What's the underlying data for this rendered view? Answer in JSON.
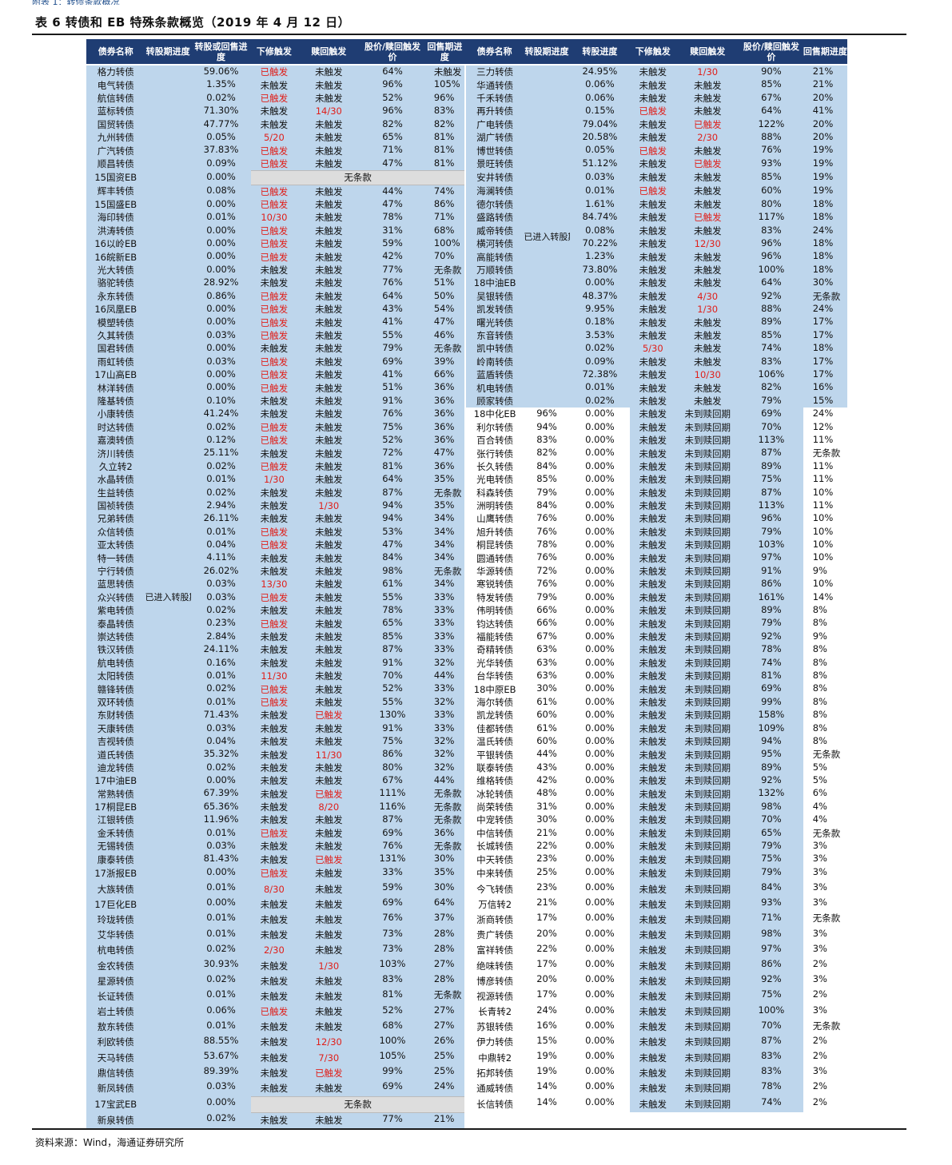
{
  "title": "表 6   转债和 EB 特殊条款概览（2019 年 4 月 12 日）",
  "topstrip": "附表 1：转债条款概况",
  "source": "资料来源：Wind，海通证券研究所",
  "header": [
    "债券名称",
    "转股期进度",
    "转股或回售进度",
    "下修触发",
    "赎回触发",
    "股价/赎回触发价",
    "回售期进度",
    "债券名称",
    "转股期进度",
    "转股进度",
    "下修触发",
    "赎回触发",
    "股价/赎回触发价",
    "回售期进度"
  ],
  "group_label": "已进入转股期",
  "no_clause": "无条款",
  "colors": {
    "header": "#1f3d73",
    "light_blue": "#bed6ec",
    "bar_blue": "#2567ae",
    "bar_green": "#72a93a",
    "red": "#e0201b"
  },
  "left": [
    [
      "格力转债",
      "59.06%",
      "已触发",
      "未触发",
      "64%",
      "未触发"
    ],
    [
      "电气转债",
      "1.35%",
      "未触发",
      "未触发",
      "96%",
      "105%"
    ],
    [
      "航信转债",
      "0.02%",
      "已触发",
      "未触发",
      "52%",
      "96%"
    ],
    [
      "蓝标转债",
      "71.30%",
      "未触发",
      "14/30",
      "96%",
      "83%"
    ],
    [
      "国贸转债",
      "47.77%",
      "未触发",
      "未触发",
      "82%",
      "82%"
    ],
    [
      "九州转债",
      "0.05%",
      "5/20",
      "未触发",
      "65%",
      "81%"
    ],
    [
      "广汽转债",
      "37.83%",
      "已触发",
      "未触发",
      "71%",
      "81%"
    ],
    [
      "顺昌转债",
      "0.09%",
      "已触发",
      "未触发",
      "47%",
      "81%"
    ],
    [
      "15国资EB",
      "0.00%",
      "无条款",
      "",
      "",
      ""
    ],
    [
      "辉丰转债",
      "0.08%",
      "已触发",
      "未触发",
      "44%",
      "74%"
    ],
    [
      "15国盛EB",
      "0.00%",
      "已触发",
      "未触发",
      "47%",
      "86%"
    ],
    [
      "海印转债",
      "0.01%",
      "10/30",
      "未触发",
      "78%",
      "71%"
    ],
    [
      "洪涛转债",
      "0.00%",
      "已触发",
      "未触发",
      "31%",
      "68%"
    ],
    [
      "16以岭EB",
      "0.00%",
      "已触发",
      "未触发",
      "59%",
      "100%"
    ],
    [
      "16皖新EB",
      "0.00%",
      "已触发",
      "未触发",
      "42%",
      "70%"
    ],
    [
      "光大转债",
      "0.00%",
      "未触发",
      "未触发",
      "77%",
      "无条款"
    ],
    [
      "骆驼转债",
      "28.92%",
      "未触发",
      "未触发",
      "76%",
      "51%"
    ],
    [
      "永东转债",
      "0.86%",
      "已触发",
      "未触发",
      "64%",
      "50%"
    ],
    [
      "16凤凰EB",
      "0.00%",
      "已触发",
      "未触发",
      "43%",
      "54%"
    ],
    [
      "模塑转债",
      "0.00%",
      "已触发",
      "未触发",
      "41%",
      "47%"
    ],
    [
      "久其转债",
      "0.03%",
      "已触发",
      "未触发",
      "55%",
      "46%"
    ],
    [
      "国君转债",
      "0.00%",
      "未触发",
      "未触发",
      "79%",
      "无条款"
    ],
    [
      "雨虹转债",
      "0.03%",
      "已触发",
      "未触发",
      "69%",
      "39%"
    ],
    [
      "17山高EB",
      "0.00%",
      "已触发",
      "未触发",
      "41%",
      "66%"
    ],
    [
      "林洋转债",
      "0.00%",
      "已触发",
      "未触发",
      "51%",
      "36%"
    ],
    [
      "隆基转债",
      "0.10%",
      "未触发",
      "未触发",
      "91%",
      "36%"
    ],
    [
      "小康转债",
      "41.24%",
      "未触发",
      "未触发",
      "76%",
      "36%"
    ],
    [
      "时达转债",
      "0.02%",
      "已触发",
      "未触发",
      "75%",
      "36%"
    ],
    [
      "嘉澳转债",
      "0.12%",
      "已触发",
      "未触发",
      "52%",
      "36%"
    ],
    [
      "济川转债",
      "25.11%",
      "未触发",
      "未触发",
      "72%",
      "47%"
    ],
    [
      "久立转2",
      "0.02%",
      "已触发",
      "未触发",
      "81%",
      "36%"
    ],
    [
      "水晶转债",
      "0.01%",
      "1/30",
      "未触发",
      "64%",
      "35%"
    ],
    [
      "生益转债",
      "0.02%",
      "未触发",
      "未触发",
      "87%",
      "无条款"
    ],
    [
      "国祯转债",
      "2.94%",
      "未触发",
      "1/30",
      "94%",
      "35%"
    ],
    [
      "兄弟转债",
      "26.11%",
      "未触发",
      "未触发",
      "94%",
      "34%"
    ],
    [
      "众信转债",
      "0.01%",
      "已触发",
      "未触发",
      "53%",
      "34%"
    ],
    [
      "亚太转债",
      "0.04%",
      "已触发",
      "未触发",
      "47%",
      "34%"
    ],
    [
      "特一转债",
      "4.11%",
      "未触发",
      "未触发",
      "84%",
      "34%"
    ],
    [
      "宁行转债",
      "26.02%",
      "未触发",
      "未触发",
      "98%",
      "无条款"
    ],
    [
      "蓝思转债",
      "0.03%",
      "13/30",
      "未触发",
      "61%",
      "34%"
    ],
    [
      "众兴转债",
      "0.03%",
      "已触发",
      "未触发",
      "55%",
      "33%"
    ],
    [
      "紫电转债",
      "0.02%",
      "未触发",
      "未触发",
      "78%",
      "33%"
    ],
    [
      "泰晶转债",
      "0.23%",
      "已触发",
      "未触发",
      "65%",
      "33%"
    ],
    [
      "崇达转债",
      "2.84%",
      "未触发",
      "未触发",
      "85%",
      "33%"
    ],
    [
      "铁汉转债",
      "24.11%",
      "未触发",
      "未触发",
      "87%",
      "33%"
    ],
    [
      "航电转债",
      "0.16%",
      "未触发",
      "未触发",
      "91%",
      "32%"
    ],
    [
      "太阳转债",
      "0.01%",
      "11/30",
      "未触发",
      "70%",
      "44%"
    ],
    [
      "赣锋转债",
      "0.02%",
      "已触发",
      "未触发",
      "52%",
      "33%"
    ],
    [
      "双环转债",
      "0.01%",
      "已触发",
      "未触发",
      "55%",
      "32%"
    ],
    [
      "东财转债",
      "71.43%",
      "未触发",
      "已触发",
      "130%",
      "33%"
    ],
    [
      "天康转债",
      "0.03%",
      "未触发",
      "未触发",
      "91%",
      "33%"
    ],
    [
      "吉视转债",
      "0.04%",
      "未触发",
      "未触发",
      "75%",
      "32%"
    ],
    [
      "道氏转债",
      "35.32%",
      "未触发",
      "11/30",
      "86%",
      "32%"
    ],
    [
      "迪龙转债",
      "0.02%",
      "未触发",
      "未触发",
      "80%",
      "32%"
    ],
    [
      "17中油EB",
      "0.00%",
      "未触发",
      "未触发",
      "67%",
      "44%"
    ],
    [
      "常熟转债",
      "67.39%",
      "未触发",
      "已触发",
      "111%",
      "无条款"
    ],
    [
      "17桐昆EB",
      "65.36%",
      "未触发",
      "8/20",
      "116%",
      "无条款"
    ],
    [
      "江银转债",
      "11.96%",
      "未触发",
      "未触发",
      "87%",
      "无条款"
    ],
    [
      "金禾转债",
      "0.01%",
      "已触发",
      "未触发",
      "69%",
      "36%"
    ],
    [
      "无锡转债",
      "0.03%",
      "未触发",
      "未触发",
      "76%",
      "无条款"
    ],
    [
      "康泰转债",
      "81.43%",
      "未触发",
      "已触发",
      "131%",
      "30%"
    ],
    [
      "17浙报EB",
      "0.00%",
      "已触发",
      "未触发",
      "33%",
      "35%"
    ],
    [
      "大族转债",
      "0.01%",
      "8/30",
      "未触发",
      "59%",
      "30%"
    ],
    [
      "17巨化EB",
      "0.00%",
      "未触发",
      "未触发",
      "69%",
      "64%"
    ],
    [
      "玲珑转债",
      "0.01%",
      "未触发",
      "未触发",
      "76%",
      "37%"
    ],
    [
      "艾华转债",
      "0.01%",
      "未触发",
      "未触发",
      "73%",
      "28%"
    ],
    [
      "杭电转债",
      "0.02%",
      "2/30",
      "未触发",
      "73%",
      "28%"
    ],
    [
      "金农转债",
      "30.93%",
      "未触发",
      "1/30",
      "103%",
      "27%"
    ],
    [
      "星源转债",
      "0.02%",
      "未触发",
      "未触发",
      "83%",
      "28%"
    ],
    [
      "长证转债",
      "0.01%",
      "未触发",
      "未触发",
      "81%",
      "无条款"
    ],
    [
      "岩土转债",
      "0.06%",
      "已触发",
      "未触发",
      "52%",
      "27%"
    ],
    [
      "敖东转债",
      "0.01%",
      "未触发",
      "未触发",
      "68%",
      "27%"
    ],
    [
      "利欧转债",
      "88.55%",
      "未触发",
      "12/30",
      "100%",
      "26%"
    ],
    [
      "天马转债",
      "53.67%",
      "未触发",
      "7/30",
      "105%",
      "25%"
    ],
    [
      "鼎信转债",
      "89.39%",
      "未触发",
      "已触发",
      "99%",
      "25%"
    ],
    [
      "新凤转债",
      "0.03%",
      "未触发",
      "未触发",
      "69%",
      "24%"
    ],
    [
      "17宝武EB",
      "0.00%",
      "无条款",
      "",
      "",
      ""
    ],
    [
      "新泉转债",
      "0.02%",
      "未触发",
      "未触发",
      "77%",
      "21%"
    ]
  ],
  "right": [
    [
      "三力转债",
      "",
      "24.95%",
      "未触发",
      "1/30",
      "90%",
      "21%"
    ],
    [
      "华通转债",
      "",
      "0.06%",
      "未触发",
      "未触发",
      "85%",
      "21%"
    ],
    [
      "千禾转债",
      "",
      "0.06%",
      "未触发",
      "未触发",
      "67%",
      "20%"
    ],
    [
      "再升转债",
      "",
      "0.15%",
      "已触发",
      "未触发",
      "64%",
      "41%"
    ],
    [
      "广电转债",
      "",
      "79.04%",
      "未触发",
      "已触发",
      "122%",
      "20%"
    ],
    [
      "湖广转债",
      "",
      "20.58%",
      "未触发",
      "2/30",
      "88%",
      "20%"
    ],
    [
      "博世转债",
      "",
      "0.05%",
      "已触发",
      "未触发",
      "76%",
      "19%"
    ],
    [
      "景旺转债",
      "",
      "51.12%",
      "未触发",
      "已触发",
      "93%",
      "19%"
    ],
    [
      "安井转债",
      "",
      "0.03%",
      "未触发",
      "未触发",
      "85%",
      "19%"
    ],
    [
      "海澜转债",
      "",
      "0.01%",
      "已触发",
      "未触发",
      "60%",
      "19%"
    ],
    [
      "德尔转债",
      "",
      "1.61%",
      "未触发",
      "未触发",
      "80%",
      "18%"
    ],
    [
      "盛路转债",
      "",
      "84.74%",
      "未触发",
      "已触发",
      "117%",
      "18%"
    ],
    [
      "威帝转债",
      "",
      "0.08%",
      "未触发",
      "未触发",
      "83%",
      "24%"
    ],
    [
      "横河转债",
      "",
      "70.22%",
      "未触发",
      "12/30",
      "96%",
      "18%"
    ],
    [
      "高能转债",
      "",
      "1.23%",
      "未触发",
      "未触发",
      "96%",
      "18%"
    ],
    [
      "万顺转债",
      "",
      "73.80%",
      "未触发",
      "未触发",
      "100%",
      "18%"
    ],
    [
      "18中油EB",
      "",
      "0.00%",
      "未触发",
      "未触发",
      "64%",
      "30%"
    ],
    [
      "吴银转债",
      "",
      "48.37%",
      "未触发",
      "4/30",
      "92%",
      "无条款"
    ],
    [
      "凯发转债",
      "",
      "9.95%",
      "未触发",
      "1/30",
      "88%",
      "24%"
    ],
    [
      "曙光转债",
      "",
      "0.18%",
      "未触发",
      "未触发",
      "89%",
      "17%"
    ],
    [
      "东音转债",
      "",
      "3.53%",
      "未触发",
      "未触发",
      "85%",
      "17%"
    ],
    [
      "凯中转债",
      "",
      "0.02%",
      "5/30",
      "未触发",
      "74%",
      "18%"
    ],
    [
      "岭南转债",
      "",
      "0.09%",
      "未触发",
      "未触发",
      "83%",
      "17%"
    ],
    [
      "蓝盾转债",
      "",
      "72.38%",
      "未触发",
      "10/30",
      "106%",
      "17%"
    ],
    [
      "机电转债",
      "",
      "0.01%",
      "未触发",
      "未触发",
      "82%",
      "16%"
    ],
    [
      "顾家转债",
      "",
      "0.02%",
      "未触发",
      "未触发",
      "79%",
      "15%"
    ],
    [
      "18中化EB",
      "96%",
      "0.00%",
      "未触发",
      "未到赎回期",
      "69%",
      "24%"
    ],
    [
      "利尔转债",
      "94%",
      "0.00%",
      "未触发",
      "未到赎回期",
      "70%",
      "12%"
    ],
    [
      "百合转债",
      "83%",
      "0.00%",
      "未触发",
      "未到赎回期",
      "113%",
      "11%"
    ],
    [
      "张行转债",
      "82%",
      "0.00%",
      "未触发",
      "未到赎回期",
      "87%",
      "无条款"
    ],
    [
      "长久转债",
      "84%",
      "0.00%",
      "未触发",
      "未到赎回期",
      "89%",
      "11%"
    ],
    [
      "光电转债",
      "85%",
      "0.00%",
      "未触发",
      "未到赎回期",
      "75%",
      "11%"
    ],
    [
      "科森转债",
      "79%",
      "0.00%",
      "未触发",
      "未到赎回期",
      "87%",
      "10%"
    ],
    [
      "洲明转债",
      "84%",
      "0.00%",
      "未触发",
      "未到赎回期",
      "113%",
      "11%"
    ],
    [
      "山鹰转债",
      "76%",
      "0.00%",
      "未触发",
      "未到赎回期",
      "96%",
      "10%"
    ],
    [
      "旭升转债",
      "76%",
      "0.00%",
      "未触发",
      "未到赎回期",
      "79%",
      "10%"
    ],
    [
      "桐昆转债",
      "78%",
      "0.00%",
      "未触发",
      "未到赎回期",
      "103%",
      "10%"
    ],
    [
      "圆通转债",
      "76%",
      "0.00%",
      "未触发",
      "未到赎回期",
      "97%",
      "10%"
    ],
    [
      "华源转债",
      "72%",
      "0.00%",
      "未触发",
      "未到赎回期",
      "91%",
      "9%"
    ],
    [
      "寒锐转债",
      "76%",
      "0.00%",
      "未触发",
      "未到赎回期",
      "86%",
      "10%"
    ],
    [
      "特发转债",
      "79%",
      "0.00%",
      "未触发",
      "未到赎回期",
      "161%",
      "14%"
    ],
    [
      "伟明转债",
      "66%",
      "0.00%",
      "未触发",
      "未到赎回期",
      "89%",
      "8%"
    ],
    [
      "钧达转债",
      "66%",
      "0.00%",
      "未触发",
      "未到赎回期",
      "79%",
      "8%"
    ],
    [
      "福能转债",
      "67%",
      "0.00%",
      "未触发",
      "未到赎回期",
      "92%",
      "9%"
    ],
    [
      "奇精转债",
      "63%",
      "0.00%",
      "未触发",
      "未到赎回期",
      "78%",
      "8%"
    ],
    [
      "光华转债",
      "63%",
      "0.00%",
      "未触发",
      "未到赎回期",
      "74%",
      "8%"
    ],
    [
      "台华转债",
      "63%",
      "0.00%",
      "未触发",
      "未到赎回期",
      "81%",
      "8%"
    ],
    [
      "18中原EB",
      "30%",
      "0.00%",
      "未触发",
      "未到赎回期",
      "69%",
      "8%"
    ],
    [
      "海尔转债",
      "61%",
      "0.00%",
      "未触发",
      "未到赎回期",
      "99%",
      "8%"
    ],
    [
      "凯龙转债",
      "60%",
      "0.00%",
      "未触发",
      "未到赎回期",
      "158%",
      "8%"
    ],
    [
      "佳都转债",
      "61%",
      "0.00%",
      "未触发",
      "未到赎回期",
      "109%",
      "8%"
    ],
    [
      "温氏转债",
      "60%",
      "0.00%",
      "未触发",
      "未到赎回期",
      "94%",
      "8%"
    ],
    [
      "平银转债",
      "44%",
      "0.00%",
      "未触发",
      "未到赎回期",
      "95%",
      "无条款"
    ],
    [
      "联泰转债",
      "43%",
      "0.00%",
      "未触发",
      "未到赎回期",
      "89%",
      "5%"
    ],
    [
      "维格转债",
      "42%",
      "0.00%",
      "未触发",
      "未到赎回期",
      "92%",
      "5%"
    ],
    [
      "冰轮转债",
      "48%",
      "0.00%",
      "未触发",
      "未到赎回期",
      "132%",
      "6%"
    ],
    [
      "尚荣转债",
      "31%",
      "0.00%",
      "未触发",
      "未到赎回期",
      "98%",
      "4%"
    ],
    [
      "中宠转债",
      "30%",
      "0.00%",
      "未触发",
      "未到赎回期",
      "70%",
      "4%"
    ],
    [
      "中信转债",
      "21%",
      "0.00%",
      "未触发",
      "未到赎回期",
      "65%",
      "无条款"
    ],
    [
      "长城转债",
      "22%",
      "0.00%",
      "未触发",
      "未到赎回期",
      "79%",
      "3%"
    ],
    [
      "中天转债",
      "23%",
      "0.00%",
      "未触发",
      "未到赎回期",
      "75%",
      "3%"
    ],
    [
      "中来转债",
      "25%",
      "0.00%",
      "未触发",
      "未到赎回期",
      "79%",
      "3%"
    ],
    [
      "今飞转债",
      "23%",
      "0.00%",
      "未触发",
      "未到赎回期",
      "84%",
      "3%"
    ],
    [
      "万信转2",
      "21%",
      "0.00%",
      "未触发",
      "未到赎回期",
      "93%",
      "3%"
    ],
    [
      "浙商转债",
      "17%",
      "0.00%",
      "未触发",
      "未到赎回期",
      "71%",
      "无条款"
    ],
    [
      "贵广转债",
      "20%",
      "0.00%",
      "未触发",
      "未到赎回期",
      "98%",
      "3%"
    ],
    [
      "富祥转债",
      "22%",
      "0.00%",
      "未触发",
      "未到赎回期",
      "97%",
      "3%"
    ],
    [
      "绝味转债",
      "17%",
      "0.00%",
      "未触发",
      "未到赎回期",
      "86%",
      "2%"
    ],
    [
      "博彦转债",
      "20%",
      "0.00%",
      "未触发",
      "未到赎回期",
      "92%",
      "3%"
    ],
    [
      "视源转债",
      "17%",
      "0.00%",
      "未触发",
      "未到赎回期",
      "75%",
      "2%"
    ],
    [
      "长青转2",
      "24%",
      "0.00%",
      "未触发",
      "未到赎回期",
      "100%",
      "3%"
    ],
    [
      "苏银转债",
      "16%",
      "0.00%",
      "未触发",
      "未到赎回期",
      "70%",
      "无条款"
    ],
    [
      "伊力转债",
      "15%",
      "0.00%",
      "未触发",
      "未到赎回期",
      "87%",
      "2%"
    ],
    [
      "中鼎转2",
      "19%",
      "0.00%",
      "未触发",
      "未到赎回期",
      "83%",
      "2%"
    ],
    [
      "拓邦转债",
      "19%",
      "0.00%",
      "未触发",
      "未到赎回期",
      "83%",
      "3%"
    ],
    [
      "通威转债",
      "14%",
      "0.00%",
      "未触发",
      "未到赎回期",
      "78%",
      "2%"
    ],
    [
      "长信转债",
      "14%",
      "0.00%",
      "未触发",
      "未到赎回期",
      "74%",
      "2%"
    ]
  ]
}
